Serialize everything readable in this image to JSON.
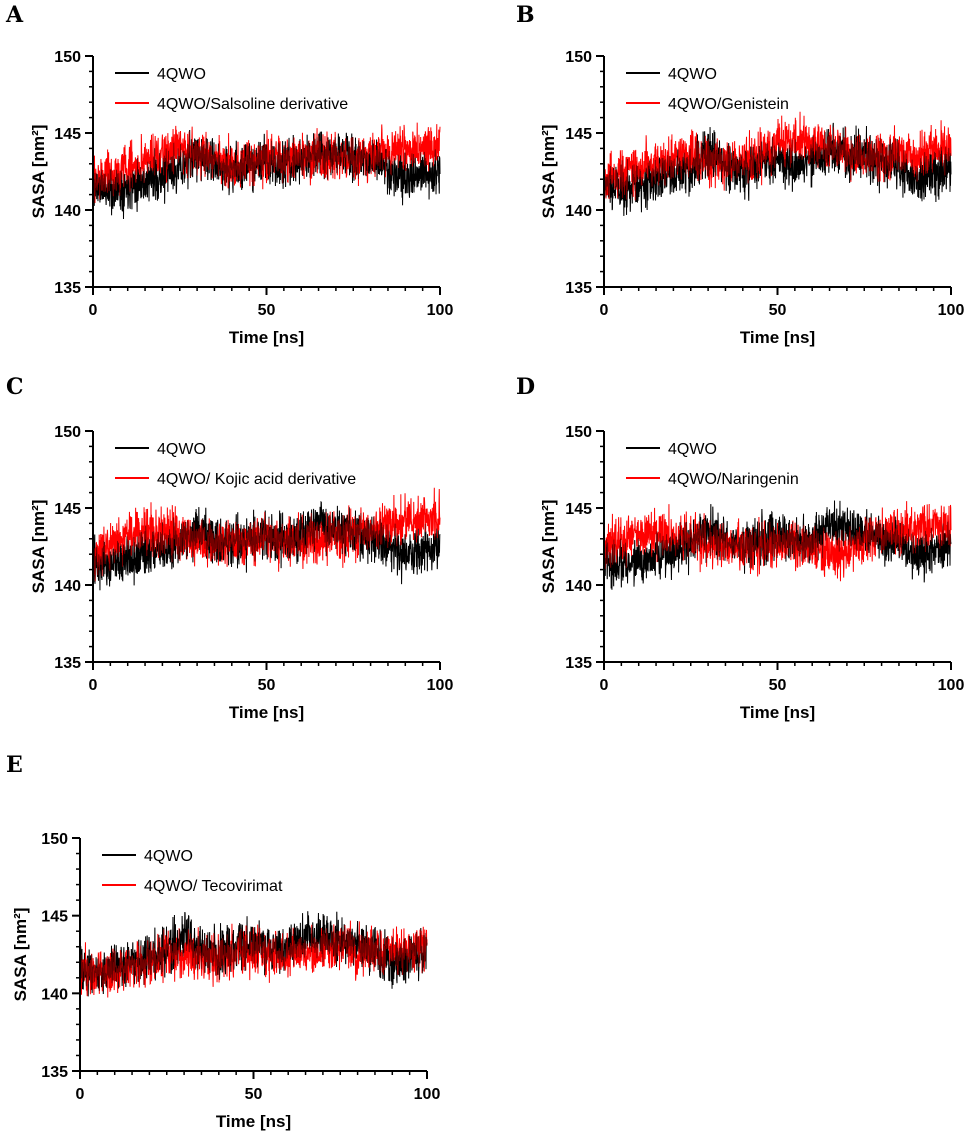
{
  "chart_data": [
    {
      "panel": "A",
      "type": "line",
      "xlabel": "Time [ns]",
      "ylabel": "SASA [nm²]",
      "xlim": [
        0,
        100
      ],
      "ylim": [
        135,
        150
      ],
      "xticks": [
        0,
        50,
        100
      ],
      "yticks": [
        135,
        140,
        145,
        150
      ],
      "series": [
        {
          "name": "4QWO",
          "color": "#000000",
          "x": [
            0,
            5,
            10,
            15,
            20,
            25,
            30,
            35,
            40,
            45,
            50,
            55,
            60,
            65,
            70,
            75,
            80,
            85,
            90,
            95,
            100
          ],
          "values": [
            141.6,
            141.3,
            141.6,
            141.9,
            142.2,
            142.7,
            143.7,
            142.9,
            142.6,
            143.0,
            143.2,
            142.9,
            143.1,
            143.9,
            143.6,
            143.4,
            143.2,
            142.7,
            141.9,
            142.3,
            142.6
          ],
          "noise": 1.1
        },
        {
          "name": "4QWO/Salsoline derivative",
          "color": "#ff0000",
          "x": [
            0,
            5,
            10,
            15,
            20,
            25,
            30,
            35,
            40,
            45,
            50,
            55,
            60,
            65,
            70,
            75,
            80,
            85,
            90,
            95,
            100
          ],
          "values": [
            142.0,
            142.2,
            142.8,
            143.2,
            143.5,
            144.0,
            143.8,
            143.2,
            142.9,
            143.0,
            143.3,
            143.2,
            143.5,
            143.6,
            143.3,
            143.3,
            143.6,
            143.8,
            143.8,
            144.1,
            144.2
          ],
          "noise": 1.1
        }
      ]
    },
    {
      "panel": "B",
      "type": "line",
      "xlabel": "Time [ns]",
      "ylabel": "SASA [nm²]",
      "xlim": [
        0,
        100
      ],
      "ylim": [
        135,
        150
      ],
      "xticks": [
        0,
        50,
        100
      ],
      "yticks": [
        135,
        140,
        145,
        150
      ],
      "series": [
        {
          "name": "4QWO",
          "color": "#000000",
          "x": [
            0,
            5,
            10,
            15,
            20,
            25,
            30,
            35,
            40,
            45,
            50,
            55,
            60,
            65,
            70,
            75,
            80,
            85,
            90,
            95,
            100
          ],
          "values": [
            141.6,
            141.3,
            141.6,
            141.9,
            142.2,
            142.7,
            143.7,
            142.9,
            142.6,
            143.0,
            143.2,
            142.9,
            143.1,
            143.9,
            143.6,
            143.4,
            143.2,
            142.7,
            141.9,
            142.3,
            142.6
          ],
          "noise": 1.1
        },
        {
          "name": "4QWO/Genistein",
          "color": "#ff0000",
          "x": [
            0,
            5,
            10,
            15,
            20,
            25,
            30,
            35,
            40,
            45,
            50,
            55,
            60,
            65,
            70,
            75,
            80,
            85,
            90,
            95,
            100
          ],
          "values": [
            142.2,
            142.3,
            142.6,
            142.9,
            143.2,
            143.5,
            143.3,
            143.1,
            143.2,
            143.6,
            144.2,
            144.6,
            144.4,
            144.0,
            143.6,
            143.4,
            143.5,
            143.6,
            143.5,
            143.9,
            144.1
          ],
          "noise": 1.1
        }
      ]
    },
    {
      "panel": "C",
      "type": "line",
      "xlabel": "Time [ns]",
      "ylabel": "SASA [nm²]",
      "xlim": [
        0,
        100
      ],
      "ylim": [
        135,
        150
      ],
      "xticks": [
        0,
        50,
        100
      ],
      "yticks": [
        135,
        140,
        145,
        150
      ],
      "series": [
        {
          "name": "4QWO",
          "color": "#000000",
          "x": [
            0,
            5,
            10,
            15,
            20,
            25,
            30,
            35,
            40,
            45,
            50,
            55,
            60,
            65,
            70,
            75,
            80,
            85,
            90,
            95,
            100
          ],
          "values": [
            141.6,
            141.3,
            141.6,
            141.9,
            142.2,
            142.7,
            143.7,
            142.9,
            142.6,
            143.0,
            143.2,
            142.9,
            143.1,
            143.9,
            143.6,
            143.4,
            143.2,
            142.7,
            141.9,
            142.3,
            142.6
          ],
          "noise": 1.1
        },
        {
          "name": "4QWO/ Kojic acid derivative",
          "color": "#ff0000",
          "x": [
            0,
            5,
            10,
            15,
            20,
            25,
            30,
            35,
            40,
            45,
            50,
            55,
            60,
            65,
            70,
            75,
            80,
            85,
            90,
            95,
            100
          ],
          "values": [
            141.9,
            142.6,
            143.3,
            143.5,
            143.4,
            143.3,
            142.9,
            142.6,
            142.7,
            142.9,
            142.9,
            142.8,
            142.8,
            143.0,
            143.1,
            143.3,
            143.6,
            143.9,
            144.1,
            144.3,
            144.4
          ],
          "noise": 1.1
        }
      ]
    },
    {
      "panel": "D",
      "type": "line",
      "xlabel": "Time [ns]",
      "ylabel": "SASA [nm²]",
      "xlim": [
        0,
        100
      ],
      "ylim": [
        135,
        150
      ],
      "xticks": [
        0,
        50,
        100
      ],
      "yticks": [
        135,
        140,
        145,
        150
      ],
      "series": [
        {
          "name": "4QWO",
          "color": "#000000",
          "x": [
            0,
            5,
            10,
            15,
            20,
            25,
            30,
            35,
            40,
            45,
            50,
            55,
            60,
            65,
            70,
            75,
            80,
            85,
            90,
            95,
            100
          ],
          "values": [
            141.6,
            141.3,
            141.6,
            141.9,
            142.2,
            142.7,
            143.7,
            142.9,
            142.6,
            143.0,
            143.2,
            142.9,
            143.1,
            143.9,
            143.6,
            143.4,
            143.2,
            142.7,
            141.9,
            142.3,
            142.6
          ],
          "noise": 1.1
        },
        {
          "name": "4QWO/Naringenin",
          "color": "#ff0000",
          "x": [
            0,
            5,
            10,
            15,
            20,
            25,
            30,
            35,
            40,
            45,
            50,
            55,
            60,
            65,
            70,
            75,
            80,
            85,
            90,
            95,
            100
          ],
          "values": [
            142.4,
            142.9,
            143.3,
            143.4,
            143.2,
            142.9,
            142.7,
            142.5,
            142.4,
            142.5,
            142.8,
            142.7,
            142.3,
            141.9,
            142.2,
            142.9,
            143.3,
            143.5,
            143.7,
            143.8,
            143.8
          ],
          "noise": 1.1
        }
      ]
    },
    {
      "panel": "E",
      "type": "line",
      "xlabel": "Time [ns]",
      "ylabel": "SASA [nm²]",
      "xlim": [
        0,
        100
      ],
      "ylim": [
        135,
        150
      ],
      "xticks": [
        0,
        50,
        100
      ],
      "yticks": [
        135,
        140,
        145,
        150
      ],
      "series": [
        {
          "name": "4QWO",
          "color": "#000000",
          "x": [
            0,
            5,
            10,
            15,
            20,
            25,
            30,
            35,
            40,
            45,
            50,
            55,
            60,
            65,
            70,
            75,
            80,
            85,
            90,
            95,
            100
          ],
          "values": [
            141.6,
            141.3,
            141.6,
            141.9,
            142.2,
            142.7,
            143.7,
            142.9,
            142.6,
            143.0,
            143.2,
            142.9,
            143.1,
            143.9,
            143.6,
            143.4,
            143.2,
            142.7,
            141.9,
            142.3,
            142.6
          ],
          "noise": 1.1
        },
        {
          "name": "4QWO/ Tecovirimat",
          "color": "#ff0000",
          "x": [
            0,
            5,
            10,
            15,
            20,
            25,
            30,
            35,
            40,
            45,
            50,
            55,
            60,
            65,
            70,
            75,
            80,
            85,
            90,
            95,
            100
          ],
          "values": [
            141.5,
            141.2,
            141.3,
            141.7,
            142.1,
            142.4,
            142.4,
            142.3,
            142.3,
            142.5,
            142.6,
            142.5,
            142.3,
            142.5,
            142.8,
            142.9,
            142.7,
            142.6,
            142.6,
            142.9,
            143.0
          ],
          "noise": 1.1
        }
      ]
    }
  ]
}
